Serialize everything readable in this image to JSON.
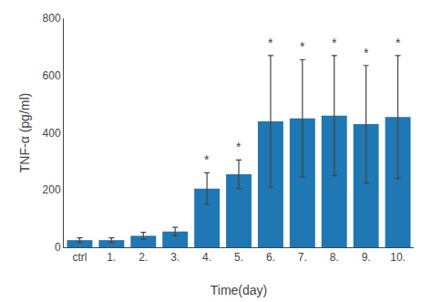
{
  "chart_data": {
    "type": "bar",
    "categories": [
      "ctrl",
      "1.",
      "2.",
      "3.",
      "4.",
      "5.",
      "6.",
      "7.",
      "8.",
      "9.",
      "10."
    ],
    "values": [
      25,
      25,
      40,
      55,
      205,
      255,
      440,
      450,
      460,
      430,
      455
    ],
    "errors": [
      8,
      8,
      12,
      15,
      55,
      50,
      230,
      205,
      210,
      205,
      215
    ],
    "xlabel": "Time(day)",
    "ylabel": "TNF-α (pg/ml)",
    "ylim": [
      0,
      800
    ],
    "yticks": [
      0,
      200,
      400,
      600,
      800
    ],
    "grid": false,
    "annotations": [
      {
        "x": "4.",
        "text": "*"
      },
      {
        "x": "5.",
        "text": "*"
      },
      {
        "x": "6.",
        "text": "*"
      },
      {
        "x": "7.",
        "text": "*"
      },
      {
        "x": "8.",
        "text": "*"
      },
      {
        "x": "9.",
        "text": "*"
      },
      {
        "x": "10.",
        "text": "*"
      }
    ]
  }
}
